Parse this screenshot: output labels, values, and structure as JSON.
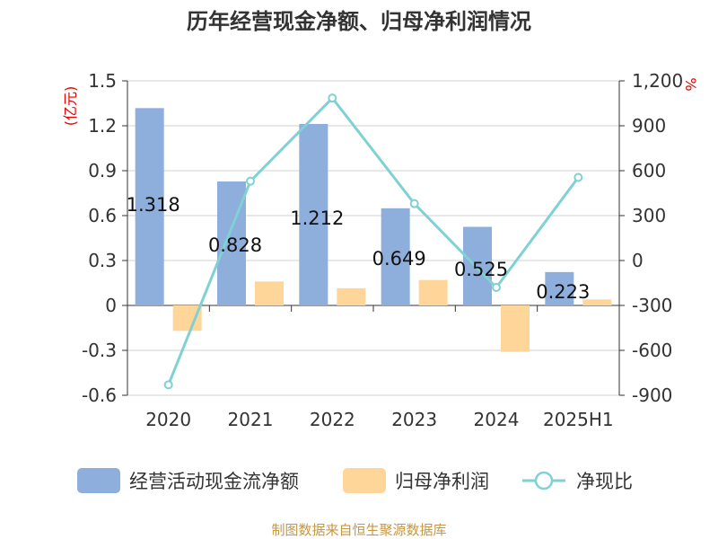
{
  "chart_data": {
    "type": "bar",
    "title": "历年经营现金净额、归母净利润情况",
    "categories": [
      "2020",
      "2021",
      "2022",
      "2023",
      "2024",
      "2025H1"
    ],
    "left_axis": {
      "unit": "(亿元)",
      "ticks": [
        "1.5",
        "1.2",
        "0.9",
        "0.6",
        "0.3",
        "0",
        "-0.3",
        "-0.6"
      ],
      "ylim": [
        -0.6,
        1.5
      ]
    },
    "right_axis": {
      "unit": "%",
      "ticks": [
        "1,200",
        "900",
        "600",
        "300",
        "0",
        "-300",
        "-600",
        "-900"
      ],
      "ylim": [
        -900,
        1200
      ]
    },
    "grid": true,
    "legend_position": "bottom",
    "series": [
      {
        "name": "经营活动现金流净额",
        "type": "bar",
        "axis": "left",
        "color": "#8eaedb",
        "values": [
          1.318,
          0.828,
          1.212,
          0.649,
          0.525,
          0.223
        ],
        "labels": [
          "1.318",
          "0.828",
          "1.212",
          "0.649",
          "0.525",
          "0.223"
        ]
      },
      {
        "name": "归母净利润",
        "type": "bar",
        "axis": "left",
        "color": "#ffd699",
        "values": [
          -0.17,
          0.16,
          0.115,
          0.17,
          -0.31,
          0.04
        ]
      },
      {
        "name": "净现比",
        "type": "line",
        "axis": "right",
        "color": "#7fd1d3",
        "values": [
          -830,
          530,
          1085,
          380,
          -180,
          555
        ]
      }
    ]
  },
  "source": "制图数据来自恒生聚源数据库"
}
